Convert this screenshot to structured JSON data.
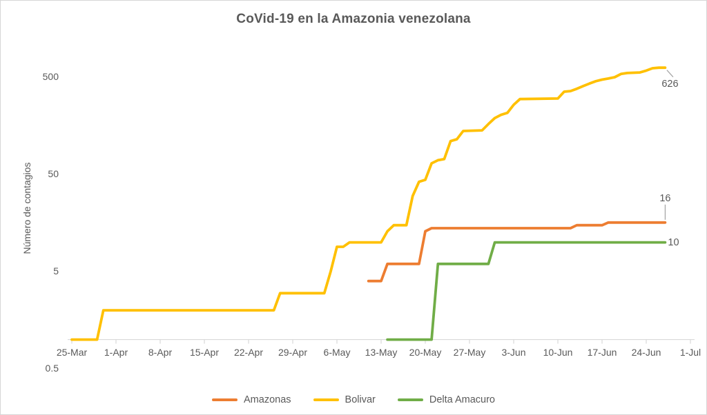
{
  "chart_data": {
    "type": "line",
    "title": "CoVid-19 en la Amazonia venezolana",
    "ylabel": "Número de contagios",
    "xlabel": "",
    "y_scale": "log10",
    "ylim": [
      0.5,
      1000
    ],
    "grid": false,
    "legend_position": "bottom",
    "x_ticks": [
      "25-Mar",
      "1-Apr",
      "8-Apr",
      "15-Apr",
      "22-Apr",
      "29-Apr",
      "6-May",
      "13-May",
      "20-May",
      "27-May",
      "3-Jun",
      "10-Jun",
      "17-Jun",
      "24-Jun",
      "1-Jul"
    ],
    "y_ticks": [
      {
        "value": 500,
        "label": "500"
      },
      {
        "value": 50,
        "label": "50"
      },
      {
        "value": 5,
        "label": "5"
      },
      {
        "value": 0.5,
        "label": "0.5"
      }
    ],
    "series": [
      {
        "name": "Amazonas",
        "color": "#ED7D31",
        "end_label": "16",
        "points": [
          [
            "11-May",
            4
          ],
          [
            "13-May",
            4
          ],
          [
            "14-May",
            6
          ],
          [
            "19-May",
            6
          ],
          [
            "20-May",
            13
          ],
          [
            "21-May",
            14
          ],
          [
            "12-Jun",
            14
          ],
          [
            "13-Jun",
            15
          ],
          [
            "17-Jun",
            15
          ],
          [
            "18-Jun",
            16
          ],
          [
            "27-Jun",
            16
          ]
        ]
      },
      {
        "name": "Bolivar",
        "color": "#FFC000",
        "end_label": "626",
        "points": [
          [
            "25-Mar",
            1
          ],
          [
            "29-Mar",
            1
          ],
          [
            "30-Mar",
            2
          ],
          [
            "26-Apr",
            2
          ],
          [
            "27-Apr",
            3
          ],
          [
            "4-May",
            3
          ],
          [
            "5-May",
            5
          ],
          [
            "6-May",
            9
          ],
          [
            "7-May",
            9
          ],
          [
            "8-May",
            10
          ],
          [
            "13-May",
            10
          ],
          [
            "14-May",
            13
          ],
          [
            "15-May",
            15
          ],
          [
            "17-May",
            15
          ],
          [
            "18-May",
            30
          ],
          [
            "19-May",
            42
          ],
          [
            "20-May",
            44
          ],
          [
            "21-May",
            65
          ],
          [
            "22-May",
            70
          ],
          [
            "23-May",
            72
          ],
          [
            "24-May",
            110
          ],
          [
            "25-May",
            115
          ],
          [
            "26-May",
            140
          ],
          [
            "29-May",
            142
          ],
          [
            "30-May",
            165
          ],
          [
            "31-May",
            190
          ],
          [
            "1-Jun",
            205
          ],
          [
            "2-Jun",
            215
          ],
          [
            "3-Jun",
            260
          ],
          [
            "4-Jun",
            298
          ],
          [
            "10-Jun",
            302
          ],
          [
            "11-Jun",
            355
          ],
          [
            "12-Jun",
            360
          ],
          [
            "13-Jun",
            380
          ],
          [
            "14-Jun",
            405
          ],
          [
            "15-Jun",
            430
          ],
          [
            "16-Jun",
            455
          ],
          [
            "17-Jun",
            472
          ],
          [
            "18-Jun",
            485
          ],
          [
            "19-Jun",
            500
          ],
          [
            "20-Jun",
            540
          ],
          [
            "21-Jun",
            552
          ],
          [
            "22-Jun",
            556
          ],
          [
            "23-Jun",
            560
          ],
          [
            "24-Jun",
            585
          ],
          [
            "25-Jun",
            618
          ],
          [
            "26-Jun",
            626
          ],
          [
            "27-Jun",
            626
          ]
        ]
      },
      {
        "name": "Delta Amacuro",
        "color": "#70AD47",
        "end_label": "10",
        "points": [
          [
            "14-May",
            1
          ],
          [
            "21-May",
            1
          ],
          [
            "22-May",
            6
          ],
          [
            "30-May",
            6
          ],
          [
            "31-May",
            10
          ],
          [
            "27-Jun",
            10
          ]
        ]
      }
    ]
  },
  "colors": {
    "text": "#595959",
    "axis_line": "#D9D9D9",
    "leader_line": "#A6A6A6",
    "canvas_border": "#D6D6D6",
    "background": "#FFFFFF"
  }
}
